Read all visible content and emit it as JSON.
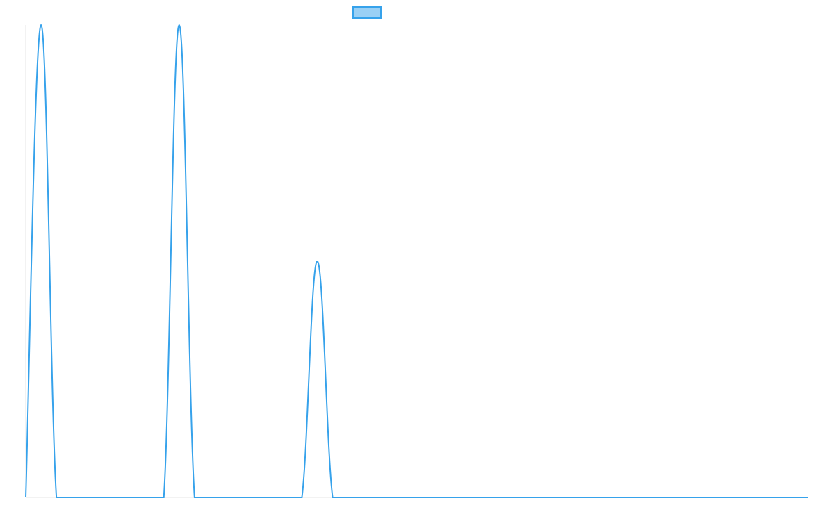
{
  "chart_data": {
    "type": "line",
    "categories": [
      null,
      null,
      null,
      null,
      null,
      null,
      null,
      null,
      null,
      null,
      null,
      null,
      null,
      null,
      null,
      null,
      null,
      null,
      null,
      null,
      null,
      null,
      null,
      null,
      null,
      null,
      null,
      null,
      null,
      null,
      null,
      null,
      null,
      null,
      null,
      null,
      null,
      null,
      null,
      null,
      null,
      null,
      null,
      null,
      null,
      null,
      null,
      null,
      null,
      null,
      null,
      null
    ],
    "series": [
      {
        "color": "#36a2eb",
        "fill": "#9ad0f5",
        "values": [
          0,
          2,
          0,
          0,
          0,
          0,
          0,
          0,
          0,
          0,
          2,
          0,
          0,
          0,
          0,
          0,
          0,
          0,
          0,
          1,
          0,
          0,
          0,
          0,
          0,
          0,
          0,
          0,
          0,
          0,
          0,
          0,
          0,
          0,
          0,
          0,
          0,
          0,
          0,
          0,
          0,
          0,
          0,
          0,
          0,
          0,
          0,
          0,
          0,
          0,
          0,
          0
        ]
      }
    ],
    "ylim": [
      0,
      2
    ]
  }
}
